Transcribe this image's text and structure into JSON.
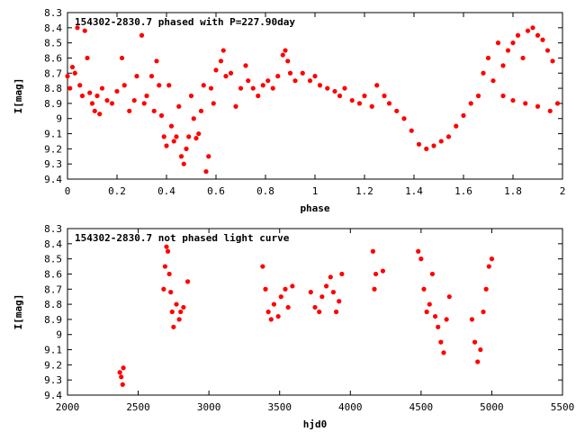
{
  "chart_data": [
    {
      "type": "scatter",
      "title": "154302-2830.7 phased with P=227.90day",
      "xlabel": "phase",
      "ylabel": "I[mag]",
      "xlim": [
        0,
        2
      ],
      "ylim": [
        9.4,
        8.3
      ],
      "y_inverted": true,
      "xticks": [
        "0",
        "0.2",
        "0.4",
        "0.6",
        "0.8",
        "1",
        "1.2",
        "1.4",
        "1.6",
        "1.8",
        "2"
      ],
      "yticks": [
        "8.3",
        "8.4",
        "8.5",
        "8.6",
        "8.7",
        "8.8",
        "8.9",
        "9",
        "9.1",
        "9.2",
        "9.3",
        "9.4"
      ],
      "marker_color": "#ff0000",
      "grid": false,
      "series": [
        {
          "values_xy": [
            [
              0.0,
              8.72
            ],
            [
              0.01,
              8.8
            ],
            [
              0.02,
              8.66
            ],
            [
              0.03,
              8.7
            ],
            [
              0.04,
              8.4
            ],
            [
              0.05,
              8.78
            ],
            [
              0.06,
              8.85
            ],
            [
              0.07,
              8.42
            ],
            [
              0.08,
              8.6
            ],
            [
              0.09,
              8.83
            ],
            [
              0.1,
              8.9
            ],
            [
              0.11,
              8.95
            ],
            [
              0.12,
              8.85
            ],
            [
              0.13,
              8.97
            ],
            [
              0.14,
              8.8
            ],
            [
              0.16,
              8.88
            ],
            [
              0.18,
              8.9
            ],
            [
              0.2,
              8.82
            ],
            [
              0.22,
              8.6
            ],
            [
              0.23,
              8.78
            ],
            [
              0.25,
              8.95
            ],
            [
              0.27,
              8.88
            ],
            [
              0.28,
              8.72
            ],
            [
              0.3,
              8.45
            ],
            [
              0.31,
              8.9
            ],
            [
              0.32,
              8.85
            ],
            [
              0.34,
              8.72
            ],
            [
              0.35,
              8.95
            ],
            [
              0.36,
              8.62
            ],
            [
              0.37,
              8.78
            ],
            [
              0.38,
              8.98
            ],
            [
              0.39,
              9.12
            ],
            [
              0.4,
              9.18
            ],
            [
              0.41,
              8.78
            ],
            [
              0.42,
              9.05
            ],
            [
              0.43,
              9.15
            ],
            [
              0.44,
              9.12
            ],
            [
              0.45,
              8.92
            ],
            [
              0.46,
              9.25
            ],
            [
              0.47,
              9.3
            ],
            [
              0.48,
              9.2
            ],
            [
              0.49,
              9.12
            ],
            [
              0.5,
              8.85
            ],
            [
              0.51,
              9.0
            ],
            [
              0.52,
              9.13
            ],
            [
              0.53,
              9.1
            ],
            [
              0.54,
              8.95
            ],
            [
              0.55,
              8.78
            ],
            [
              0.56,
              9.35
            ],
            [
              0.57,
              9.25
            ],
            [
              0.58,
              8.8
            ],
            [
              0.59,
              8.9
            ],
            [
              0.6,
              8.68
            ],
            [
              0.62,
              8.62
            ],
            [
              0.63,
              8.55
            ],
            [
              0.64,
              8.72
            ],
            [
              0.66,
              8.7
            ],
            [
              0.68,
              8.92
            ],
            [
              0.7,
              8.8
            ],
            [
              0.72,
              8.65
            ],
            [
              0.73,
              8.75
            ],
            [
              0.75,
              8.8
            ],
            [
              0.77,
              8.85
            ],
            [
              0.79,
              8.78
            ],
            [
              0.81,
              8.75
            ],
            [
              0.83,
              8.8
            ],
            [
              0.85,
              8.72
            ],
            [
              0.87,
              8.58
            ],
            [
              0.88,
              8.55
            ],
            [
              0.89,
              8.62
            ],
            [
              0.9,
              8.7
            ],
            [
              0.92,
              8.75
            ],
            [
              0.95,
              8.7
            ],
            [
              0.98,
              8.75
            ],
            [
              1.0,
              8.72
            ],
            [
              1.02,
              8.78
            ],
            [
              1.05,
              8.8
            ],
            [
              1.08,
              8.82
            ],
            [
              1.1,
              8.85
            ],
            [
              1.12,
              8.8
            ],
            [
              1.15,
              8.88
            ],
            [
              1.18,
              8.9
            ],
            [
              1.2,
              8.85
            ],
            [
              1.23,
              8.92
            ],
            [
              1.25,
              8.78
            ],
            [
              1.28,
              8.85
            ],
            [
              1.3,
              8.9
            ],
            [
              1.33,
              8.95
            ],
            [
              1.36,
              9.0
            ],
            [
              1.39,
              9.08
            ],
            [
              1.42,
              9.17
            ],
            [
              1.45,
              9.2
            ],
            [
              1.48,
              9.18
            ],
            [
              1.51,
              9.15
            ],
            [
              1.54,
              9.12
            ],
            [
              1.57,
              9.05
            ],
            [
              1.6,
              8.98
            ],
            [
              1.63,
              8.9
            ],
            [
              1.66,
              8.85
            ],
            [
              1.68,
              8.7
            ],
            [
              1.7,
              8.6
            ],
            [
              1.72,
              8.75
            ],
            [
              1.74,
              8.5
            ],
            [
              1.76,
              8.65
            ],
            [
              1.78,
              8.55
            ],
            [
              1.8,
              8.5
            ],
            [
              1.82,
              8.45
            ],
            [
              1.84,
              8.6
            ],
            [
              1.86,
              8.42
            ],
            [
              1.88,
              8.4
            ],
            [
              1.9,
              8.45
            ],
            [
              1.92,
              8.48
            ],
            [
              1.94,
              8.55
            ],
            [
              1.96,
              8.62
            ],
            [
              1.98,
              8.9
            ],
            [
              1.76,
              8.85
            ],
            [
              1.8,
              8.88
            ],
            [
              1.85,
              8.9
            ],
            [
              1.9,
              8.92
            ],
            [
              1.95,
              8.95
            ]
          ]
        }
      ]
    },
    {
      "type": "scatter",
      "title": "154302-2830.7 not phased light curve",
      "xlabel": "hjd0",
      "ylabel": "I[mag]",
      "xlim": [
        2000,
        5500
      ],
      "ylim": [
        9.4,
        8.3
      ],
      "y_inverted": true,
      "xticks": [
        "2000",
        "2500",
        "3000",
        "3500",
        "4000",
        "4500",
        "5000",
        "5500"
      ],
      "yticks": [
        "8.3",
        "8.4",
        "8.5",
        "8.6",
        "8.7",
        "8.8",
        "8.9",
        "9",
        "9.1",
        "9.2",
        "9.3",
        "9.4"
      ],
      "marker_color": "#ff0000",
      "grid": false,
      "series": [
        {
          "values_xy": [
            [
              2370,
              9.25
            ],
            [
              2380,
              9.28
            ],
            [
              2390,
              9.33
            ],
            [
              2395,
              9.22
            ],
            [
              2680,
              8.7
            ],
            [
              2690,
              8.55
            ],
            [
              2700,
              8.42
            ],
            [
              2710,
              8.45
            ],
            [
              2720,
              8.6
            ],
            [
              2730,
              8.72
            ],
            [
              2740,
              8.85
            ],
            [
              2750,
              8.95
            ],
            [
              2770,
              8.8
            ],
            [
              2790,
              8.9
            ],
            [
              2800,
              8.85
            ],
            [
              2820,
              8.82
            ],
            [
              2850,
              8.65
            ],
            [
              3380,
              8.55
            ],
            [
              3400,
              8.7
            ],
            [
              3420,
              8.85
            ],
            [
              3440,
              8.9
            ],
            [
              3460,
              8.8
            ],
            [
              3490,
              8.88
            ],
            [
              3510,
              8.75
            ],
            [
              3540,
              8.7
            ],
            [
              3560,
              8.82
            ],
            [
              3590,
              8.68
            ],
            [
              3720,
              8.72
            ],
            [
              3750,
              8.82
            ],
            [
              3780,
              8.85
            ],
            [
              3800,
              8.75
            ],
            [
              3830,
              8.68
            ],
            [
              3860,
              8.62
            ],
            [
              3880,
              8.72
            ],
            [
              3900,
              8.85
            ],
            [
              3920,
              8.78
            ],
            [
              3940,
              8.6
            ],
            [
              4160,
              8.45
            ],
            [
              4170,
              8.7
            ],
            [
              4180,
              8.6
            ],
            [
              4230,
              8.58
            ],
            [
              4480,
              8.45
            ],
            [
              4500,
              8.5
            ],
            [
              4520,
              8.7
            ],
            [
              4540,
              8.85
            ],
            [
              4560,
              8.8
            ],
            [
              4580,
              8.6
            ],
            [
              4600,
              8.88
            ],
            [
              4620,
              8.95
            ],
            [
              4640,
              9.05
            ],
            [
              4660,
              9.12
            ],
            [
              4680,
              8.9
            ],
            [
              4700,
              8.75
            ],
            [
              4860,
              8.9
            ],
            [
              4880,
              9.05
            ],
            [
              4900,
              9.18
            ],
            [
              4920,
              9.1
            ],
            [
              4940,
              8.85
            ],
            [
              4960,
              8.7
            ],
            [
              4980,
              8.55
            ],
            [
              5000,
              8.5
            ]
          ]
        }
      ]
    }
  ]
}
